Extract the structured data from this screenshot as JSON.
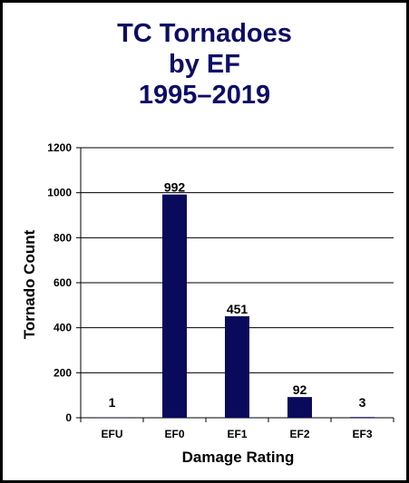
{
  "colors": {
    "title": "#0d0d66",
    "bar": "#0a0a5c",
    "grid": "#000000",
    "border": "#000000",
    "background": "#ffffff"
  },
  "title_lines": [
    "TC Tornadoes",
    "by EF",
    "1995–2019"
  ],
  "chart_data": {
    "type": "bar",
    "title": "TC Tornadoes by EF 1995–2019",
    "xlabel": "Damage Rating",
    "ylabel": "Tornado Count",
    "categories": [
      "EFU",
      "EF0",
      "EF1",
      "EF2",
      "EF3"
    ],
    "values": [
      1,
      992,
      451,
      92,
      3
    ],
    "data_labels": [
      "1",
      "992",
      "451",
      "92",
      "3"
    ],
    "ylim": [
      0,
      1200
    ],
    "yticks": [
      0,
      200,
      400,
      600,
      800,
      1000,
      1200
    ],
    "grid": true,
    "legend": "none"
  }
}
